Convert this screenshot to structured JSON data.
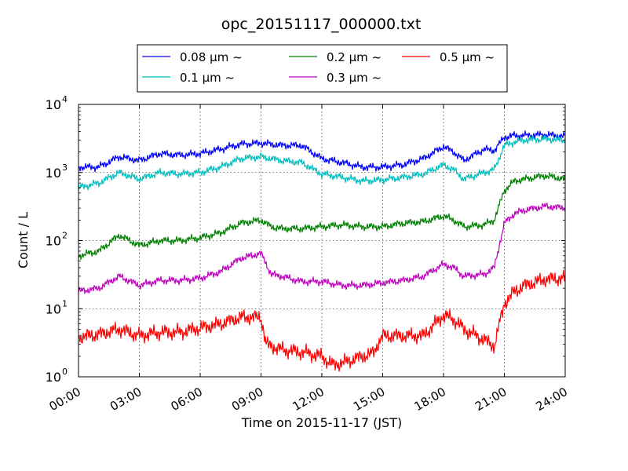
{
  "chart_data": {
    "type": "line",
    "title": "opc_20151117_000000.txt",
    "xlabel": "Time on 2015-11-17 (JST)",
    "ylabel": "Count / L",
    "yscale": "log",
    "ylim": [
      1,
      10000
    ],
    "xlim": [
      "00:00",
      "24:00"
    ],
    "x_tick_labels": [
      "00:00",
      "03:00",
      "06:00",
      "09:00",
      "12:00",
      "15:00",
      "18:00",
      "21:00",
      "24:00"
    ],
    "y_tick_labels": [
      {
        "base": "10",
        "exp": "0"
      },
      {
        "base": "10",
        "exp": "1"
      },
      {
        "base": "10",
        "exp": "2"
      },
      {
        "base": "10",
        "exp": "3"
      },
      {
        "base": "10",
        "exp": "4"
      }
    ],
    "grid": true,
    "legend_placement": "top-center, above plot",
    "series": [
      {
        "name": "0.08 μm ~",
        "color": "#0000ff",
        "x": [
          "00:00",
          "01:00",
          "02:00",
          "03:00",
          "04:00",
          "05:00",
          "06:00",
          "07:00",
          "08:00",
          "09:00",
          "10:00",
          "11:00",
          "12:00",
          "13:00",
          "14:00",
          "15:00",
          "16:00",
          "17:00",
          "18:00",
          "18:30",
          "19:00",
          "20:00",
          "20:30",
          "21:00",
          "21:30",
          "22:00",
          "23:00",
          "24:00"
        ],
        "values": [
          1200,
          1200,
          1700,
          1500,
          1900,
          1800,
          1900,
          2200,
          2600,
          2700,
          2500,
          2500,
          1600,
          1400,
          1200,
          1200,
          1300,
          1600,
          2400,
          2000,
          1500,
          2200,
          2100,
          3300,
          3500,
          3500,
          3600,
          3400
        ]
      },
      {
        "name": "0.1 μm ~",
        "color": "#00bfbf",
        "x": [
          "00:00",
          "01:00",
          "02:00",
          "03:00",
          "04:00",
          "05:00",
          "06:00",
          "07:00",
          "08:00",
          "09:00",
          "10:00",
          "11:00",
          "12:00",
          "13:00",
          "14:00",
          "15:00",
          "16:00",
          "17:00",
          "18:00",
          "18:30",
          "19:00",
          "20:00",
          "20:30",
          "21:00",
          "21:30",
          "22:00",
          "23:00",
          "24:00"
        ],
        "values": [
          600,
          700,
          1000,
          800,
          1000,
          950,
          1000,
          1200,
          1600,
          1700,
          1500,
          1400,
          950,
          850,
          750,
          780,
          850,
          950,
          1300,
          1100,
          800,
          1000,
          1100,
          2500,
          2800,
          3000,
          3100,
          3000
        ]
      },
      {
        "name": "0.2 μm ~",
        "color": "#008000",
        "x": [
          "00:00",
          "01:00",
          "02:00",
          "03:00",
          "04:00",
          "05:00",
          "06:00",
          "07:00",
          "08:00",
          "09:00",
          "09:30",
          "10:00",
          "11:00",
          "12:00",
          "13:00",
          "14:00",
          "15:00",
          "16:00",
          "17:00",
          "18:00",
          "18:30",
          "19:00",
          "20:00",
          "20:30",
          "21:00",
          "21:30",
          "22:00",
          "23:00",
          "24:00"
        ],
        "values": [
          60,
          70,
          120,
          85,
          100,
          100,
          110,
          130,
          180,
          200,
          160,
          150,
          150,
          160,
          170,
          160,
          160,
          180,
          190,
          230,
          200,
          160,
          170,
          200,
          550,
          750,
          800,
          900,
          800
        ]
      },
      {
        "name": "0.3 μm ~",
        "color": "#bf00bf",
        "x": [
          "00:00",
          "01:00",
          "02:00",
          "03:00",
          "04:00",
          "05:00",
          "06:00",
          "07:00",
          "08:00",
          "09:00",
          "09:30",
          "10:00",
          "11:00",
          "12:00",
          "13:00",
          "14:00",
          "15:00",
          "16:00",
          "17:00",
          "18:00",
          "18:30",
          "19:00",
          "20:00",
          "20:30",
          "21:00",
          "21:30",
          "22:00",
          "23:00",
          "24:00"
        ],
        "values": [
          18,
          20,
          30,
          22,
          26,
          26,
          28,
          35,
          55,
          65,
          32,
          30,
          25,
          25,
          22,
          22,
          24,
          26,
          30,
          45,
          40,
          30,
          32,
          40,
          180,
          250,
          280,
          320,
          300
        ]
      },
      {
        "name": "0.5 μm ~",
        "color": "#ff0000",
        "x": [
          "00:00",
          "01:00",
          "02:00",
          "03:00",
          "04:00",
          "05:00",
          "06:00",
          "07:00",
          "08:00",
          "09:00",
          "09:15",
          "10:00",
          "11:00",
          "12:00",
          "12:30",
          "13:00",
          "14:00",
          "14:30",
          "15:00",
          "16:00",
          "17:00",
          "18:00",
          "18:30",
          "19:00",
          "20:00",
          "20:30",
          "21:00",
          "21:30",
          "22:00",
          "23:00",
          "24:00"
        ],
        "values": [
          3.8,
          4.2,
          5.0,
          4.0,
          4.5,
          4.5,
          5.2,
          6.0,
          7.5,
          7.5,
          3.0,
          2.5,
          2.3,
          2.0,
          1.5,
          1.6,
          2.0,
          2.2,
          4.0,
          4.0,
          4.0,
          8.0,
          7.0,
          5.0,
          3.5,
          2.8,
          12,
          18,
          22,
          27,
          28
        ]
      }
    ]
  }
}
